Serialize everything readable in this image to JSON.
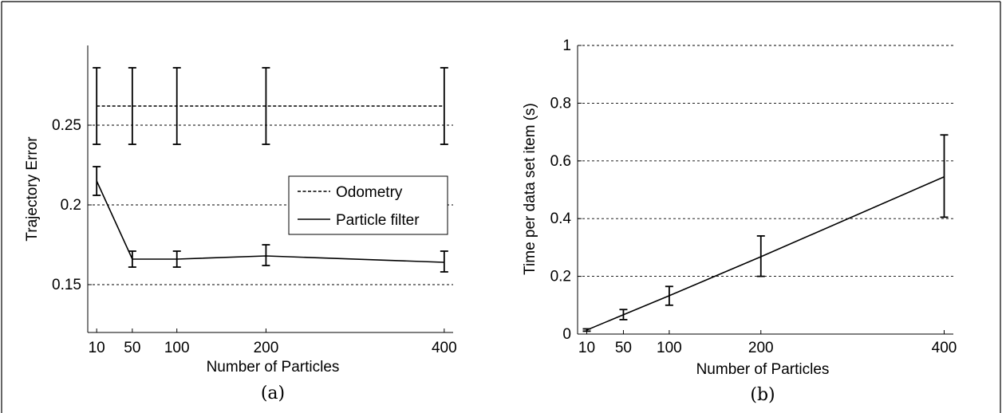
{
  "chart_data": [
    {
      "type": "line",
      "caption": "(a)",
      "xlabel": "Number of Particles",
      "ylabel": "Trajectory Error",
      "x": [
        10,
        50,
        100,
        200,
        400
      ],
      "xticks": [
        10,
        50,
        100,
        200,
        400
      ],
      "xlim": [
        0,
        410
      ],
      "ylim": [
        0.12,
        0.3
      ],
      "yticks": [
        0.15,
        0.2,
        0.25
      ],
      "ytick_labels": [
        "0.15",
        "0.2",
        "0.25"
      ],
      "grid": "y-dashed",
      "legend_position": "right-middle",
      "series": [
        {
          "name": "Odometry",
          "style": "dashed",
          "color": "#000000",
          "values": [
            0.262,
            0.262,
            0.262,
            0.262,
            0.262
          ],
          "err_low": [
            0.238,
            0.238,
            0.238,
            0.238,
            0.238
          ],
          "err_high": [
            0.286,
            0.286,
            0.286,
            0.286,
            0.286
          ]
        },
        {
          "name": "Particle filter",
          "style": "solid",
          "color": "#000000",
          "values": [
            0.215,
            0.166,
            0.166,
            0.168,
            0.164
          ],
          "err_low": [
            0.206,
            0.161,
            0.161,
            0.162,
            0.158
          ],
          "err_high": [
            0.224,
            0.171,
            0.171,
            0.175,
            0.171
          ]
        }
      ]
    },
    {
      "type": "line",
      "caption": "(b)",
      "xlabel": "Number of Particles",
      "ylabel": "Time per data set item (s)",
      "x": [
        10,
        50,
        100,
        200,
        400
      ],
      "xticks": [
        10,
        50,
        100,
        200,
        400
      ],
      "xlim": [
        0,
        410
      ],
      "ylim": [
        0,
        1
      ],
      "yticks": [
        0,
        0.2,
        0.4,
        0.6,
        0.8,
        1
      ],
      "ytick_labels": [
        "0",
        "0.2",
        "0.4",
        "0.6",
        "0.8",
        "1"
      ],
      "grid": "y-dashed",
      "series": [
        {
          "style": "solid",
          "color": "#000000",
          "values": [
            0.014,
            0.067,
            0.133,
            0.268,
            0.545
          ],
          "err_low": [
            0.01,
            0.05,
            0.1,
            0.2,
            0.405
          ],
          "err_high": [
            0.018,
            0.085,
            0.165,
            0.34,
            0.69
          ]
        }
      ]
    }
  ]
}
